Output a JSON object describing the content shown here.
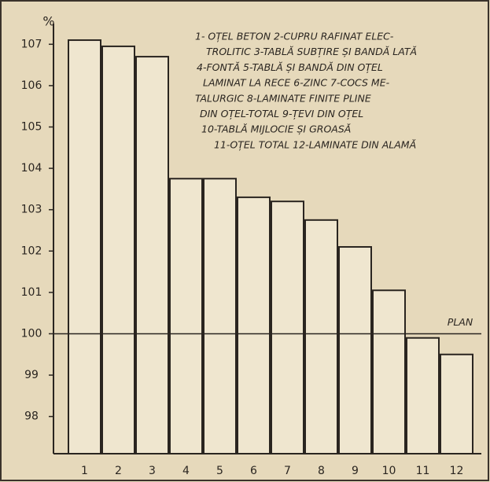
{
  "chart_data": {
    "type": "bar",
    "y_unit": "%",
    "categories": [
      "1",
      "2",
      "3",
      "4",
      "5",
      "6",
      "7",
      "8",
      "9",
      "10",
      "11",
      "12"
    ],
    "values": [
      107.1,
      106.95,
      106.7,
      103.75,
      103.75,
      103.3,
      103.2,
      102.75,
      102.1,
      101.05,
      99.9,
      99.5
    ],
    "color": "#efe6cf",
    "ylim": [
      97.1,
      107.5
    ],
    "yticks": [
      98,
      99,
      100,
      101,
      102,
      103,
      104,
      105,
      106,
      107
    ],
    "reference_line": {
      "value": 100,
      "label": "PLAN"
    },
    "legend_text": [
      "1- OȚEL BETON  2-CUPRU RAFINAT ELEC-",
      "TROLITIC  3-TABLĂ SUBȚIRE ȘI BANDĂ LATĂ",
      "4-FONTĂ  5-TABLĂ ȘI BANDĂ DIN OȚEL",
      "LAMINAT LA RECE  6-ZINC  7-COCS ME-",
      "TALURGIC  8-LAMINATE FINITE PLINE",
      "DIN OȚEL-TOTAL  9-ȚEVI DIN OȚEL",
      "10-TABLĂ MIJLOCIE ȘI GROASĂ",
      "11-OȚEL TOTAL  12-LAMINATE DIN ALAMĂ"
    ]
  }
}
